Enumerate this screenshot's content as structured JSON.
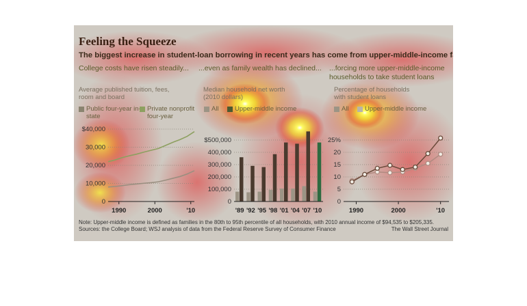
{
  "title": "Feeling the Squeeze",
  "subtitle": "The biggest increase in student-loan borrowing in recent years has come from upper-middle-income families.",
  "note": "Note: Upper-middle income is defined as families in the 80th to 95th percentile of all households, with 2010 annual income of $94,535 to $205,335.",
  "sources": "Sources: the College Board; WSJ analysis of data from the Federal Reserve Survey of Consumer Finance",
  "credit": "The Wall Street Journal",
  "colors": {
    "dark_green": "#4d5a30",
    "light_green": "#8da060",
    "dark_bar": "#4a3a2e",
    "light_bar": "#9c9485",
    "circle_dark": "#6a4a3a",
    "circle_light": "#b08a80"
  },
  "panels": [
    {
      "heading": "College costs have risen steadily...",
      "desc": "Average published tuition, fees, room and board",
      "legend": [
        "Public four-year in-state",
        "Private nonprofit four-year"
      ]
    },
    {
      "heading": "...even as family wealth has declined...",
      "desc": "Median household net worth (2010 dollars)",
      "legend": [
        "All",
        "Upper-middle income"
      ]
    },
    {
      "heading": "...forcing more upper-middle-income households to take student loans",
      "desc": "Percentage of households with student loans",
      "legend": [
        "All",
        "Upper-middle income"
      ]
    }
  ],
  "chart_data": [
    {
      "type": "line",
      "title": "College costs have risen steadily...",
      "ylabel": "Average published tuition, fees, room and board",
      "y_tick_labels": [
        "0",
        "10,000",
        "20,000",
        "30,000",
        "$40,000"
      ],
      "x_tick_labels": [
        "1990",
        "2000",
        "'10"
      ],
      "xlim": [
        1987,
        2011
      ],
      "ylim": [
        0,
        40000
      ],
      "series": [
        {
          "name": "Public four-year in-state",
          "x": [
            1987,
            1989,
            1991,
            1993,
            1995,
            1997,
            1999,
            2001,
            2003,
            2005,
            2007,
            2009,
            2011
          ],
          "values": [
            8000,
            8300,
            8800,
            9300,
            9700,
            10100,
            10400,
            10900,
            11800,
            12800,
            13800,
            15200,
            17000
          ]
        },
        {
          "name": "Private nonprofit four-year",
          "x": [
            1987,
            1989,
            1991,
            1993,
            1995,
            1997,
            1999,
            2001,
            2003,
            2005,
            2007,
            2009,
            2011
          ],
          "values": [
            22000,
            23000,
            24300,
            25300,
            26200,
            27300,
            28300,
            29300,
            31000,
            32700,
            34200,
            36000,
            38600
          ]
        }
      ]
    },
    {
      "type": "bar",
      "title": "...even as family wealth has declined...",
      "ylabel": "Median household net worth (2010 dollars)",
      "categories": [
        "'89",
        "'92",
        "'95",
        "'98",
        "'01",
        "'04",
        "'07",
        "'10"
      ],
      "y_tick_labels": [
        "0",
        "100,000",
        "200,000",
        "300,000",
        "400,000",
        "$500,000"
      ],
      "ylim": [
        0,
        600000
      ],
      "series": [
        {
          "name": "All",
          "values": [
            80000,
            75000,
            80000,
            95000,
            105000,
            105000,
            125000,
            80000
          ]
        },
        {
          "name": "Upper-middle income",
          "values": [
            360000,
            290000,
            280000,
            385000,
            480000,
            470000,
            570000,
            480000
          ]
        }
      ]
    },
    {
      "type": "line",
      "title": "...forcing more upper-middle-income households to take student loans",
      "ylabel": "Percentage of households with student loans",
      "y_tick_labels": [
        "0",
        "5",
        "10",
        "15",
        "20",
        "25%"
      ],
      "x_tick_labels": [
        "1990",
        "2000",
        "'10"
      ],
      "xlim": [
        1987,
        2012
      ],
      "ylim": [
        0,
        30
      ],
      "series": [
        {
          "name": "All",
          "x": [
            1989,
            1992,
            1995,
            1998,
            2001,
            2004,
            2007,
            2010
          ],
          "values": [
            8.5,
            11,
            12,
            11.7,
            12,
            13.5,
            15.5,
            19.2
          ]
        },
        {
          "name": "Upper-middle income",
          "x": [
            1989,
            1992,
            1995,
            1998,
            2001,
            2004,
            2007,
            2010
          ],
          "values": [
            8,
            11,
            13.5,
            14.7,
            13,
            14,
            19.5,
            25.8
          ]
        }
      ]
    }
  ]
}
